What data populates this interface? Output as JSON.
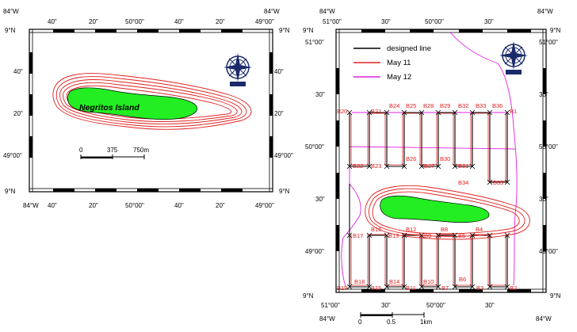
{
  "left_map": {
    "corners": {
      "top_left": "84°W",
      "top_right": "84°W",
      "bottom_left": "84°W",
      "bottom_right": "49°00\""
    },
    "lat_corner_top_left": "9°N",
    "lat_corner_top_right": "9°N",
    "lat_corner_bottom_left": "9°N",
    "lat_corner_bottom_right": "9°N",
    "top_ticks": [
      "40\"",
      "20\"",
      "50°00\"",
      "40\"",
      "20\""
    ],
    "top_right_label": "49°00\"",
    "bottom_ticks": [
      "40\"",
      "20\"",
      "50°00\"",
      "40\"",
      "20\""
    ],
    "left_ticks": [
      "40\"",
      "20\"",
      "49°00\""
    ],
    "right_ticks": [
      "40\"",
      "20\"",
      "49°00\""
    ],
    "island_name": "Negritos Island",
    "scale": {
      "zero": "0",
      "mid": "375",
      "end": "750m"
    }
  },
  "right_map": {
    "corner_top_left": "84°W",
    "corner_top_right": "84°W",
    "corner_bottom_left": "84°W",
    "corner_bottom_right": "84°W",
    "lat_top_left": "9°N",
    "lat_top_right": "9°N",
    "lat_bottom_left": "9°N",
    "lat_bottom_right": "9°N",
    "top_left_label": "51°00\"",
    "top_ticks": [
      "30\"",
      "50°00\"",
      "30\""
    ],
    "bottom_ticks": [
      "51°00\"",
      "30\"",
      "50°00\"",
      "30\""
    ],
    "left_ticks": [
      "51°00\"",
      "30\"",
      "50°00\"",
      "30\"",
      "49°00\""
    ],
    "right_ticks": [
      "51°00\"",
      "30\"",
      "50°00\"",
      "30\"",
      "49°00\""
    ],
    "legend": {
      "designed": "designed line",
      "may11": "May 11",
      "may12": "May 12"
    },
    "legend_colors": {
      "designed": "#000000",
      "may11": "#e02020",
      "may12": "#e020e0"
    },
    "scale": {
      "zero": "0",
      "mid": "0.5",
      "end": "1km"
    },
    "stations": {
      "B20": "B20",
      "B21": "B21",
      "B24": "B24",
      "B25": "B25",
      "B28": "B28",
      "B29": "B29",
      "B32": "B32",
      "B33": "B33",
      "B36": "B36",
      "B1": "B1",
      "B22": "B22",
      "B23": "B23",
      "B26": "B26",
      "B27": "B27",
      "B30": "B30",
      "B31": "B31",
      "B34": "B34",
      "B35": "B35",
      "B17": "B17",
      "B16": "B16",
      "B13": "B13",
      "B12": "B12",
      "B9": "B9",
      "B8": "B8",
      "B5": "B5",
      "B4": "B4",
      "B19": "B19",
      "B18": "B18",
      "B15": "B15",
      "B14": "B14",
      "B11": "B11",
      "B10": "B10",
      "B7": "B7",
      "B6": "B6",
      "B3": "B3",
      "B2": "B2"
    }
  }
}
